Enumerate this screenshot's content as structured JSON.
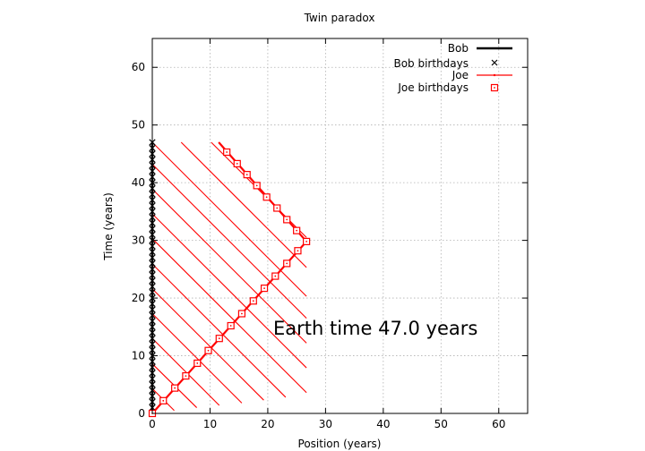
{
  "chart_data": {
    "type": "line",
    "title": "Twin paradox",
    "xlabel": "Position (years)",
    "ylabel": "Time (years)",
    "xlim": [
      0,
      65
    ],
    "ylim": [
      0,
      65
    ],
    "xticks": [
      0,
      10,
      20,
      30,
      40,
      50,
      60
    ],
    "yticks": [
      0,
      10,
      20,
      30,
      40,
      50,
      60
    ],
    "grid": true,
    "legend_position": "top-right",
    "annotation": "Earth time 47.0 years",
    "colors": {
      "bob": "#000000",
      "joe": "#ff0000"
    },
    "series": [
      {
        "name": "Bob",
        "style": "line",
        "x": [
          0,
          0
        ],
        "y": [
          0,
          47
        ]
      },
      {
        "name": "Bob birthdays",
        "style": "cross",
        "x": [
          0,
          0,
          0,
          0,
          0,
          0,
          0,
          0,
          0,
          0,
          0,
          0,
          0,
          0,
          0,
          0,
          0,
          0,
          0,
          0,
          0,
          0,
          0,
          0,
          0,
          0,
          0,
          0,
          0,
          0,
          0,
          0,
          0,
          0,
          0,
          0,
          0,
          0,
          0,
          0,
          0,
          0,
          0,
          0,
          0,
          0,
          0,
          0
        ],
        "y": [
          0,
          1,
          2,
          3,
          4,
          5,
          6,
          7,
          8,
          9,
          10,
          11,
          12,
          13,
          14,
          15,
          16,
          17,
          18,
          19,
          20,
          21,
          22,
          23,
          24,
          25,
          26,
          27,
          28,
          29,
          30,
          31,
          32,
          33,
          34,
          35,
          36,
          37,
          38,
          39,
          40,
          41,
          42,
          43,
          44,
          45,
          46,
          47
        ]
      },
      {
        "name": "Joe",
        "style": "line",
        "x": [
          0,
          26.7,
          11.5
        ],
        "y": [
          0,
          29.8,
          47
        ]
      },
      {
        "name": "Joe birthdays",
        "style": "square",
        "x": [
          0,
          1.9,
          3.9,
          5.8,
          7.8,
          9.7,
          11.6,
          13.6,
          15.5,
          17.5,
          19.4,
          21.3,
          23.3,
          25.2,
          26.7,
          25.0,
          23.3,
          21.6,
          19.8,
          18.1,
          16.4,
          14.7,
          12.9
        ],
        "y": [
          0,
          2.2,
          4.4,
          6.5,
          8.7,
          10.9,
          13.0,
          15.2,
          17.3,
          19.5,
          21.7,
          23.8,
          26.0,
          28.2,
          29.8,
          31.7,
          33.6,
          35.6,
          37.5,
          39.5,
          41.4,
          43.3,
          45.3
        ]
      }
    ],
    "signal_lines": {
      "name": "Joe",
      "description_free": true,
      "segments": [
        [
          [
            0,
            4.3
          ],
          [
            3.8,
            0.5
          ]
        ],
        [
          [
            0,
            8.6
          ],
          [
            7.7,
            1.0
          ]
        ],
        [
          [
            0,
            13.0
          ],
          [
            11.6,
            1.4
          ]
        ],
        [
          [
            0,
            17.3
          ],
          [
            15.5,
            1.8
          ]
        ],
        [
          [
            0,
            21.6
          ],
          [
            19.3,
            2.3
          ]
        ],
        [
          [
            0,
            25.9
          ],
          [
            23.1,
            2.8
          ]
        ],
        [
          [
            0,
            30.3
          ],
          [
            26.7,
            3.6
          ]
        ],
        [
          [
            0,
            34.6
          ],
          [
            26.7,
            7.9
          ]
        ],
        [
          [
            0,
            38.9
          ],
          [
            26.7,
            12.2
          ]
        ],
        [
          [
            0,
            43.2
          ],
          [
            26.7,
            16.5
          ]
        ],
        [
          [
            0,
            47
          ],
          [
            26.7,
            20.3
          ]
        ],
        [
          [
            5.0,
            47
          ],
          [
            26.7,
            25.3
          ]
        ],
        [
          [
            10.2,
            47
          ],
          [
            26.7,
            30.5
          ]
        ]
      ]
    }
  }
}
